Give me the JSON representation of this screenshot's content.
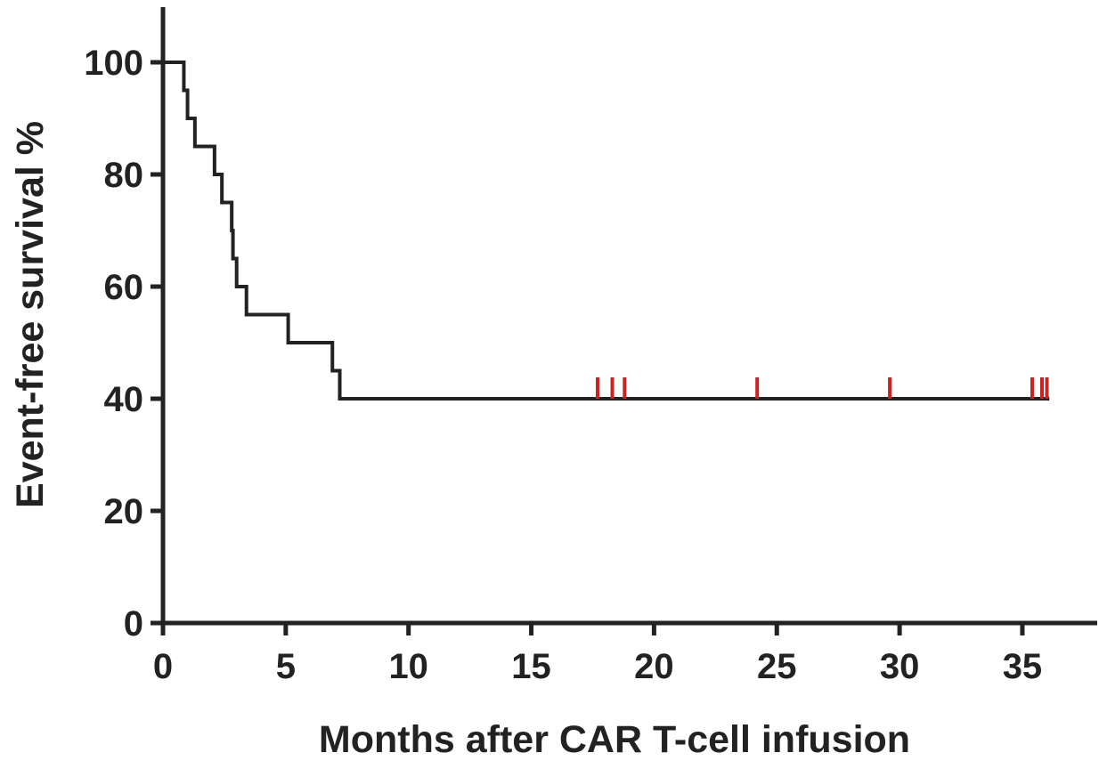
{
  "chart_data": {
    "type": "line",
    "subtype": "kaplan-meier step curve",
    "title": "",
    "xlabel": "Months after CAR T-cell infusion",
    "ylabel": "Event-free survival %",
    "xlim": [
      0,
      38
    ],
    "ylim": [
      0,
      110
    ],
    "xticks": [
      0,
      5,
      10,
      15,
      20,
      25,
      30,
      35
    ],
    "xtick_labels": [
      "0",
      "5",
      "10",
      "15",
      "20",
      "25",
      "30",
      "35"
    ],
    "yticks": [
      0,
      20,
      40,
      60,
      80,
      100
    ],
    "ytick_labels": [
      "0",
      "20",
      "40",
      "60",
      "80",
      "100"
    ],
    "grid": false,
    "legend": "none",
    "series": [
      {
        "name": "Event-free survival",
        "color": "#222222",
        "steps": [
          {
            "x": 0,
            "y": 100
          },
          {
            "x": 0.85,
            "y": 95
          },
          {
            "x": 1.0,
            "y": 90
          },
          {
            "x": 1.3,
            "y": 85
          },
          {
            "x": 2.1,
            "y": 80
          },
          {
            "x": 2.4,
            "y": 75
          },
          {
            "x": 2.8,
            "y": 70
          },
          {
            "x": 2.85,
            "y": 65
          },
          {
            "x": 3.0,
            "y": 60
          },
          {
            "x": 3.4,
            "y": 55
          },
          {
            "x": 5.1,
            "y": 50
          },
          {
            "x": 6.9,
            "y": 45
          },
          {
            "x": 7.2,
            "y": 40
          }
        ],
        "end_x": 36.1
      }
    ],
    "censored": {
      "color": "#cc2222",
      "y": 40,
      "x": [
        17.7,
        18.3,
        18.8,
        24.2,
        29.6,
        35.4,
        35.8,
        36.0
      ]
    }
  }
}
